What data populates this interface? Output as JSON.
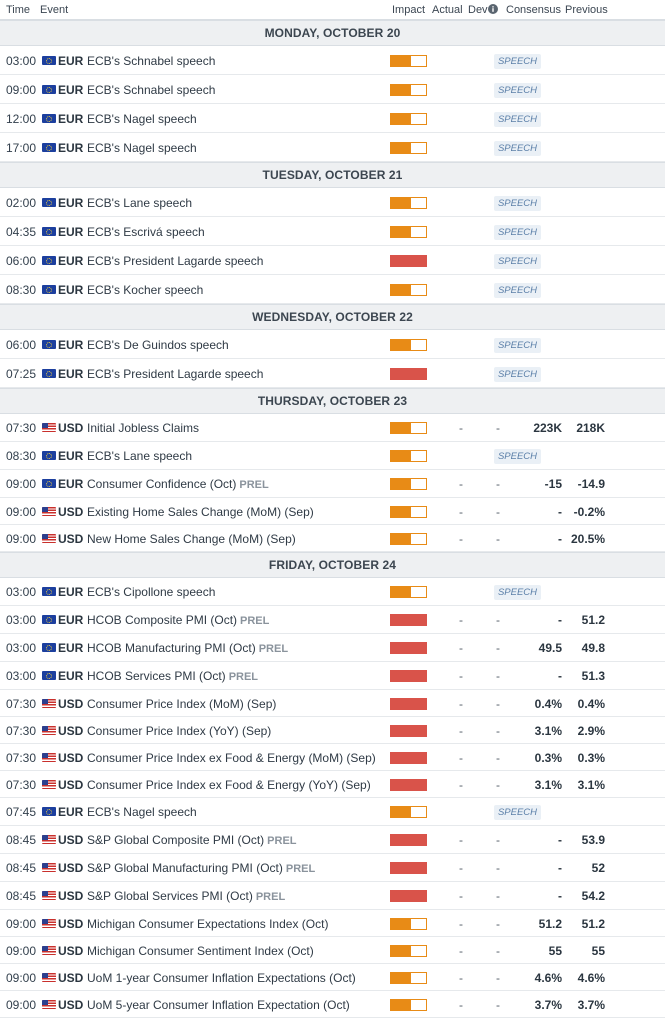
{
  "header": {
    "time": "Time",
    "event": "Event",
    "impact": "Impact",
    "actual": "Actual",
    "dev": "Dev",
    "consensus": "Consensus",
    "previous": "Previous"
  },
  "impact_colors": {
    "medium": "#e88b16",
    "high": "#d9534a"
  },
  "days": [
    {
      "label": "MONDAY, OCTOBER 20",
      "events": [
        {
          "time": "03:00",
          "flag": "eu-flag",
          "currency": "EUR",
          "name": "ECB's Schnabel speech",
          "prel": "",
          "impact": "medium",
          "speech": "SPEECH"
        },
        {
          "time": "09:00",
          "flag": "eu-flag",
          "currency": "EUR",
          "name": "ECB's Schnabel speech",
          "prel": "",
          "impact": "medium",
          "speech": "SPEECH"
        },
        {
          "time": "12:00",
          "flag": "eu-flag",
          "currency": "EUR",
          "name": "ECB's Nagel speech",
          "prel": "",
          "impact": "medium",
          "speech": "SPEECH"
        },
        {
          "time": "17:00",
          "flag": "eu-flag",
          "currency": "EUR",
          "name": "ECB's Nagel speech",
          "prel": "",
          "impact": "medium",
          "speech": "SPEECH"
        }
      ]
    },
    {
      "label": "TUESDAY, OCTOBER 21",
      "events": [
        {
          "time": "02:00",
          "flag": "eu-flag",
          "currency": "EUR",
          "name": "ECB's Lane speech",
          "prel": "",
          "impact": "medium",
          "speech": "SPEECH"
        },
        {
          "time": "04:35",
          "flag": "eu-flag",
          "currency": "EUR",
          "name": "ECB's Escrivá speech",
          "prel": "",
          "impact": "medium",
          "speech": "SPEECH"
        },
        {
          "time": "06:00",
          "flag": "eu-flag",
          "currency": "EUR",
          "name": "ECB's President Lagarde speech",
          "prel": "",
          "impact": "high",
          "speech": "SPEECH"
        },
        {
          "time": "08:30",
          "flag": "eu-flag",
          "currency": "EUR",
          "name": "ECB's Kocher speech",
          "prel": "",
          "impact": "medium",
          "speech": "SPEECH"
        }
      ]
    },
    {
      "label": "WEDNESDAY, OCTOBER 22",
      "events": [
        {
          "time": "06:00",
          "flag": "eu-flag",
          "currency": "EUR",
          "name": "ECB's De Guindos speech",
          "prel": "",
          "impact": "medium",
          "speech": "SPEECH"
        },
        {
          "time": "07:25",
          "flag": "eu-flag",
          "currency": "EUR",
          "name": "ECB's President Lagarde speech",
          "prel": "",
          "impact": "high",
          "speech": "SPEECH"
        }
      ]
    },
    {
      "label": "THURSDAY, OCTOBER 23",
      "events": [
        {
          "time": "07:30",
          "flag": "us-flag",
          "currency": "USD",
          "name": "Initial Jobless Claims",
          "prel": "",
          "impact": "medium",
          "actual": "-",
          "dev": "-",
          "consensus": "223K",
          "previous": "218K"
        },
        {
          "time": "08:30",
          "flag": "eu-flag",
          "currency": "EUR",
          "name": "ECB's Lane speech",
          "prel": "",
          "impact": "medium",
          "speech": "SPEECH"
        },
        {
          "time": "09:00",
          "flag": "eu-flag",
          "currency": "EUR",
          "name": "Consumer Confidence (Oct)",
          "prel": "PREL",
          "impact": "medium",
          "actual": "-",
          "dev": "-",
          "consensus": "-15",
          "previous": "-14.9"
        },
        {
          "time": "09:00",
          "flag": "us-flag",
          "currency": "USD",
          "name": "Existing Home Sales Change (MoM) (Sep)",
          "prel": "",
          "impact": "medium",
          "actual": "-",
          "dev": "-",
          "consensus": "-",
          "previous": "-0.2%"
        },
        {
          "time": "09:00",
          "flag": "us-flag",
          "currency": "USD",
          "name": "New Home Sales Change (MoM) (Sep)",
          "prel": "",
          "impact": "medium",
          "actual": "-",
          "dev": "-",
          "consensus": "-",
          "previous": "20.5%"
        }
      ]
    },
    {
      "label": "FRIDAY, OCTOBER 24",
      "events": [
        {
          "time": "03:00",
          "flag": "eu-flag",
          "currency": "EUR",
          "name": "ECB's Cipollone speech",
          "prel": "",
          "impact": "medium",
          "speech": "SPEECH"
        },
        {
          "time": "03:00",
          "flag": "eu-flag",
          "currency": "EUR",
          "name": "HCOB Composite PMI (Oct)",
          "prel": "PREL",
          "impact": "high",
          "actual": "-",
          "dev": "-",
          "consensus": "-",
          "previous": "51.2"
        },
        {
          "time": "03:00",
          "flag": "eu-flag",
          "currency": "EUR",
          "name": "HCOB Manufacturing PMI (Oct)",
          "prel": "PREL",
          "impact": "high",
          "actual": "-",
          "dev": "-",
          "consensus": "49.5",
          "previous": "49.8"
        },
        {
          "time": "03:00",
          "flag": "eu-flag",
          "currency": "EUR",
          "name": "HCOB Services PMI (Oct)",
          "prel": "PREL",
          "impact": "high",
          "actual": "-",
          "dev": "-",
          "consensus": "-",
          "previous": "51.3"
        },
        {
          "time": "07:30",
          "flag": "us-flag",
          "currency": "USD",
          "name": "Consumer Price Index (MoM) (Sep)",
          "prel": "",
          "impact": "high",
          "actual": "-",
          "dev": "-",
          "consensus": "0.4%",
          "previous": "0.4%"
        },
        {
          "time": "07:30",
          "flag": "us-flag",
          "currency": "USD",
          "name": "Consumer Price Index (YoY) (Sep)",
          "prel": "",
          "impact": "high",
          "actual": "-",
          "dev": "-",
          "consensus": "3.1%",
          "previous": "2.9%"
        },
        {
          "time": "07:30",
          "flag": "us-flag",
          "currency": "USD",
          "name": "Consumer Price Index ex Food & Energy (MoM) (Sep)",
          "prel": "",
          "impact": "high",
          "actual": "-",
          "dev": "-",
          "consensus": "0.3%",
          "previous": "0.3%"
        },
        {
          "time": "07:30",
          "flag": "us-flag",
          "currency": "USD",
          "name": "Consumer Price Index ex Food & Energy (YoY) (Sep)",
          "prel": "",
          "impact": "high",
          "actual": "-",
          "dev": "-",
          "consensus": "3.1%",
          "previous": "3.1%"
        },
        {
          "time": "07:45",
          "flag": "eu-flag",
          "currency": "EUR",
          "name": "ECB's Nagel speech",
          "prel": "",
          "impact": "medium",
          "speech": "SPEECH"
        },
        {
          "time": "08:45",
          "flag": "us-flag",
          "currency": "USD",
          "name": "S&P Global Composite PMI (Oct)",
          "prel": "PREL",
          "impact": "high",
          "actual": "-",
          "dev": "-",
          "consensus": "-",
          "previous": "53.9"
        },
        {
          "time": "08:45",
          "flag": "us-flag",
          "currency": "USD",
          "name": "S&P Global Manufacturing PMI (Oct)",
          "prel": "PREL",
          "impact": "high",
          "actual": "-",
          "dev": "-",
          "consensus": "-",
          "previous": "52"
        },
        {
          "time": "08:45",
          "flag": "us-flag",
          "currency": "USD",
          "name": "S&P Global Services PMI (Oct)",
          "prel": "PREL",
          "impact": "high",
          "actual": "-",
          "dev": "-",
          "consensus": "-",
          "previous": "54.2"
        },
        {
          "time": "09:00",
          "flag": "us-flag",
          "currency": "USD",
          "name": "Michigan Consumer Expectations Index (Oct)",
          "prel": "",
          "impact": "medium",
          "actual": "-",
          "dev": "-",
          "consensus": "51.2",
          "previous": "51.2"
        },
        {
          "time": "09:00",
          "flag": "us-flag",
          "currency": "USD",
          "name": "Michigan Consumer Sentiment Index (Oct)",
          "prel": "",
          "impact": "medium",
          "actual": "-",
          "dev": "-",
          "consensus": "55",
          "previous": "55"
        },
        {
          "time": "09:00",
          "flag": "us-flag",
          "currency": "USD",
          "name": "UoM 1-year Consumer Inflation Expectations (Oct)",
          "prel": "",
          "impact": "medium",
          "actual": "-",
          "dev": "-",
          "consensus": "4.6%",
          "previous": "4.6%"
        },
        {
          "time": "09:00",
          "flag": "us-flag",
          "currency": "USD",
          "name": "UoM 5-year Consumer Inflation Expectation (Oct)",
          "prel": "",
          "impact": "medium",
          "actual": "-",
          "dev": "-",
          "consensus": "3.7%",
          "previous": "3.7%"
        }
      ]
    }
  ]
}
